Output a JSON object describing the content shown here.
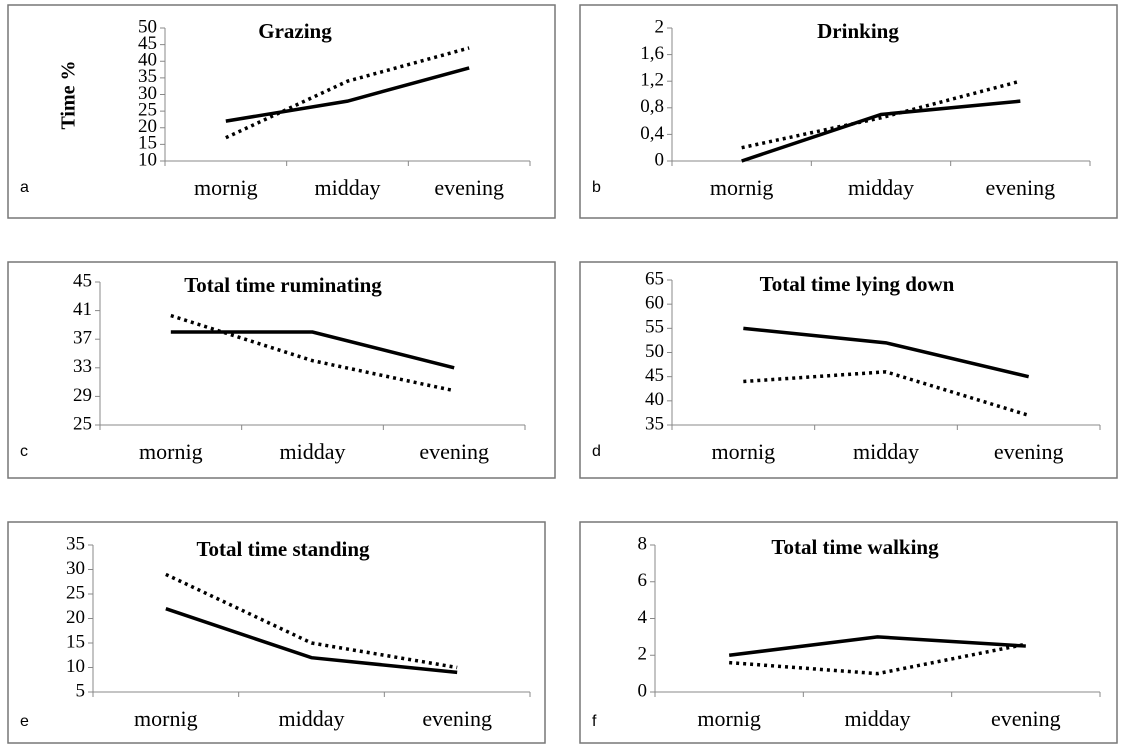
{
  "chart_data": [
    {
      "type": "line",
      "title": "Grazing",
      "panel_label": "a",
      "y_label": "Time %",
      "categories": [
        "mornig",
        "midday",
        "evening"
      ],
      "series": [
        {
          "color": "#000000",
          "line_style": "solid",
          "values": [
            22,
            28,
            38
          ]
        },
        {
          "color": "#000000",
          "line_style": "dotted",
          "values": [
            17,
            34,
            44
          ]
        }
      ],
      "ylim": [
        10,
        50
      ],
      "yticks": [
        10,
        15,
        20,
        25,
        30,
        35,
        40,
        45,
        50
      ]
    },
    {
      "type": "line",
      "title": "Drinking",
      "panel_label": "b",
      "categories": [
        "mornig",
        "midday",
        "evening"
      ],
      "series": [
        {
          "color": "#000000",
          "line_style": "solid",
          "values": [
            0,
            0.7,
            0.9
          ]
        },
        {
          "color": "#000000",
          "line_style": "dotted",
          "values": [
            0.2,
            0.65,
            1.2
          ]
        }
      ],
      "ylim": [
        0,
        2
      ],
      "yticks": [
        0,
        {
          "value": 0.4,
          "label": "0,4"
        },
        {
          "value": 0.8,
          "label": "0,8"
        },
        {
          "value": 1.2,
          "label": "1,2"
        },
        {
          "value": 1.6,
          "label": "1,6"
        },
        2
      ]
    },
    {
      "type": "line",
      "title": "Total time ruminating",
      "panel_label": "c",
      "categories": [
        "mornig",
        "midday",
        "evening"
      ],
      "series": [
        {
          "color": "#000000",
          "line_style": "solid",
          "values": [
            38,
            38,
            33
          ]
        },
        {
          "color": "#000000",
          "line_style": "dotted",
          "values": [
            40.3,
            34,
            29.8
          ]
        }
      ],
      "ylim": [
        25,
        45
      ],
      "yticks": [
        25,
        29,
        33,
        37,
        41,
        45
      ]
    },
    {
      "type": "line",
      "title": "Total time lying down",
      "panel_label": "d",
      "categories": [
        "mornig",
        "midday",
        "evening"
      ],
      "series": [
        {
          "color": "#000000",
          "line_style": "solid",
          "values": [
            55,
            52,
            45
          ]
        },
        {
          "color": "#000000",
          "line_style": "dotted",
          "values": [
            44,
            46,
            37
          ]
        }
      ],
      "ylim": [
        35,
        65
      ],
      "yticks": [
        35,
        40,
        45,
        50,
        55,
        60,
        65
      ]
    },
    {
      "type": "line",
      "title": "Total time standing",
      "panel_label": "e",
      "categories": [
        "mornig",
        "midday",
        "evening"
      ],
      "series": [
        {
          "color": "#000000",
          "line_style": "solid",
          "values": [
            22,
            12,
            9
          ]
        },
        {
          "color": "#000000",
          "line_style": "dotted",
          "values": [
            29,
            15,
            10
          ]
        }
      ],
      "ylim": [
        5,
        35
      ],
      "yticks": [
        5,
        10,
        15,
        20,
        25,
        30,
        35
      ]
    },
    {
      "type": "line",
      "title": "Total time walking",
      "panel_label": "f",
      "categories": [
        "mornig",
        "midday",
        "evening"
      ],
      "series": [
        {
          "color": "#000000",
          "line_style": "solid",
          "values": [
            2,
            3,
            2.5
          ]
        },
        {
          "color": "#000000",
          "line_style": "dotted",
          "values": [
            1.6,
            1,
            2.6
          ]
        }
      ],
      "ylim": [
        0,
        8
      ],
      "yticks": [
        0,
        2,
        4,
        6,
        8
      ]
    }
  ]
}
